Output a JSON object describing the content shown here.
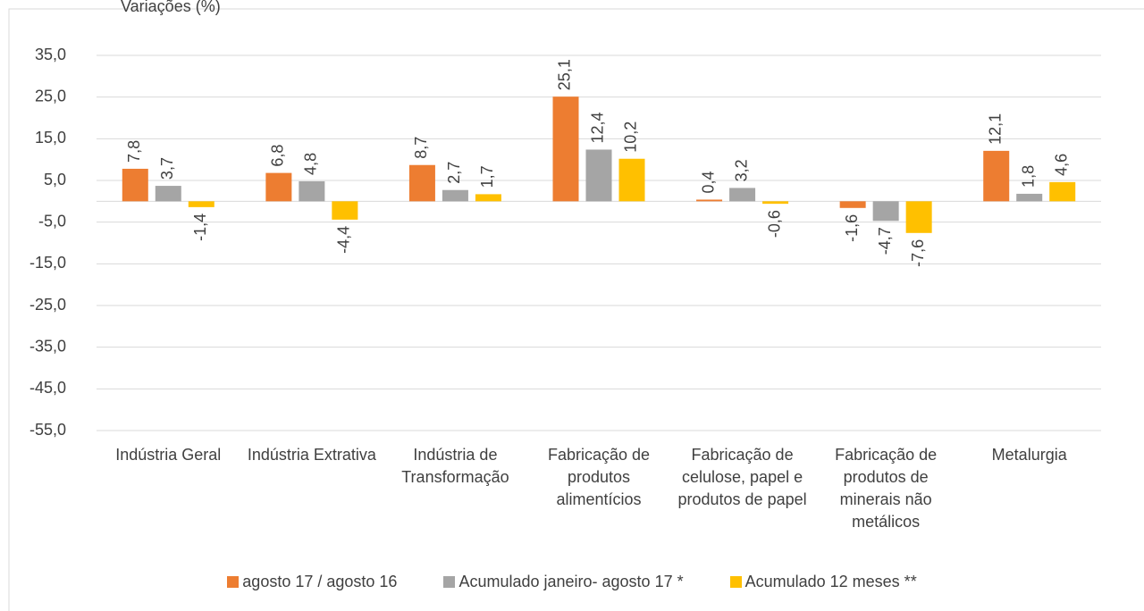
{
  "chart_data": {
    "type": "bar",
    "y_label": "Variações (%)",
    "categories": [
      "Indústria Geral",
      "Indústria Extrativa",
      "Indústria de Transformação",
      "Fabricação de produtos alimentícios",
      "Fabricação de celulose, papel e produtos de papel",
      "Fabricação de produtos de minerais não metálicos",
      "Metalurgia"
    ],
    "series": [
      {
        "name": "agosto 17 / agosto 16",
        "color": "#ED7D31",
        "values": [
          7.8,
          6.8,
          8.7,
          25.1,
          0.4,
          -1.6,
          12.1
        ],
        "value_labels": [
          "7,8",
          "6,8",
          "8,7",
          "25,1",
          "0,4",
          "-1,6",
          "12,1"
        ]
      },
      {
        "name": "Acumulado janeiro- agosto 17 *",
        "color": "#A5A5A5",
        "values": [
          3.7,
          4.8,
          2.7,
          12.4,
          3.2,
          -4.7,
          1.8
        ],
        "value_labels": [
          "3,7",
          "4,8",
          "2,7",
          "12,4",
          "3,2",
          "-4,7",
          "1,8"
        ]
      },
      {
        "name": "Acumulado 12 meses **",
        "color": "#FFC000",
        "values": [
          -1.4,
          -4.4,
          1.7,
          10.2,
          -0.6,
          -7.6,
          4.6
        ],
        "value_labels": [
          "-1,4",
          "-4,4",
          "1,7",
          "10,2",
          "-0,6",
          "-7,6",
          "4,6"
        ]
      }
    ],
    "ylim": [
      -55,
      35
    ],
    "yticks": [
      {
        "value": -55,
        "label": "-55,0"
      },
      {
        "value": -45,
        "label": "-45,0"
      },
      {
        "value": -35,
        "label": "-35,0"
      },
      {
        "value": -25,
        "label": "-25,0"
      },
      {
        "value": -15,
        "label": "-15,0"
      },
      {
        "value": -5,
        "label": "-5,0"
      },
      {
        "value": 5,
        "label": "5,0"
      },
      {
        "value": 15,
        "label": "15,0"
      },
      {
        "value": 25,
        "label": "25,0"
      },
      {
        "value": 35,
        "label": "35,0"
      }
    ],
    "grid": true,
    "legend": "bottom"
  }
}
